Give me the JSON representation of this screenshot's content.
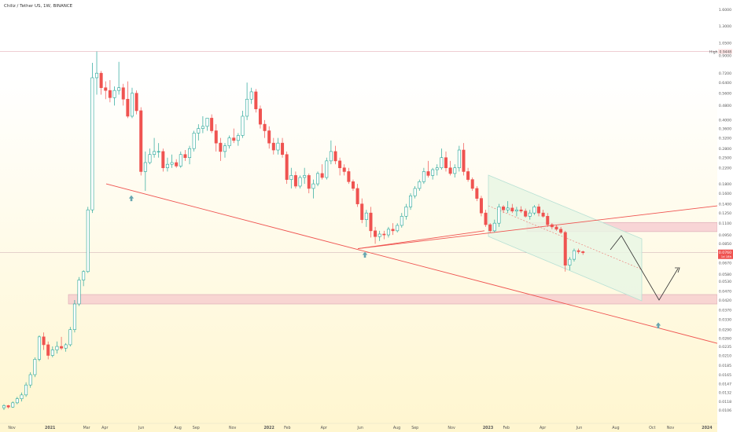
{
  "header": {
    "title": "Chiliz / Tether US, 1W, BINANCE"
  },
  "colors": {
    "up": "#26a69a",
    "up_fill": "#ffffff",
    "down": "#ef5350",
    "trend": "#ef5350",
    "zone": "#f3bcc8",
    "zone_border": "#d9a7b3",
    "channel": "#b7e0d4",
    "channel_fill": "#e9f6e4",
    "arrow": "#67a5b0",
    "bg_top": "#ffffff",
    "bg_bottom": "#fff6cf"
  },
  "chart_data": {
    "type": "candlestick",
    "symbol": "Chiliz / Tether US",
    "interval": "1W",
    "exchange": "BINANCE",
    "y_scale": "log",
    "ylim": [
      0.0106,
      1.6
    ],
    "y_ticks": [
      "1.6000",
      "1.3000",
      "1.0500",
      "0.9000",
      "0.7200",
      "0.6400",
      "0.5600",
      "0.4800",
      "0.4000",
      "0.3600",
      "0.3200",
      "0.2800",
      "0.2500",
      "0.2200",
      "0.1800",
      "0.1600",
      "0.1400",
      "0.1250",
      "0.1100",
      "0.0950",
      "0.0850",
      "0.0760",
      "0.0670",
      "0.0580",
      "0.0530",
      "0.0470",
      "0.0420",
      "0.0370",
      "0.0330",
      "0.0290",
      "0.0260",
      "0.0235",
      "0.0210",
      "0.0185",
      "0.0165",
      "0.0147",
      "0.0132",
      "0.0118",
      "0.0106"
    ],
    "high_label": {
      "text": "High",
      "value": "0.9448"
    },
    "price_label": {
      "value": "0.0760",
      "countdown": "1d 18h"
    },
    "x_ticks": [
      "Nov",
      "2021",
      "Mar",
      "Apr",
      "Jun",
      "Aug",
      "Sep",
      "Nov",
      "2022",
      "Feb",
      "Apr",
      "Jun",
      "Aug",
      "Sep",
      "Nov",
      "2023",
      "Feb",
      "Apr",
      "Jun",
      "Aug",
      "Oct",
      "Nov",
      "2024"
    ],
    "x_months": [
      0,
      2.1,
      4.1,
      5.1,
      7.1,
      9.1,
      10.1,
      12.1,
      14.1,
      15.1,
      17.1,
      19.1,
      21.1,
      22.1,
      24.1,
      26.1,
      27.1,
      29.1,
      31.1,
      33.1,
      35.1,
      36.1,
      38.1
    ],
    "candles": [
      [
        0.0109,
        0.0114,
        0.0106,
        0.0112
      ],
      [
        0.0112,
        0.0113,
        0.0108,
        0.011
      ],
      [
        0.011,
        0.0118,
        0.0109,
        0.0116
      ],
      [
        0.0116,
        0.0125,
        0.0114,
        0.0122
      ],
      [
        0.0122,
        0.0132,
        0.0118,
        0.0128
      ],
      [
        0.0128,
        0.015,
        0.0125,
        0.0145
      ],
      [
        0.0145,
        0.017,
        0.014,
        0.0165
      ],
      [
        0.0165,
        0.0205,
        0.016,
        0.02
      ],
      [
        0.02,
        0.027,
        0.0195,
        0.0265
      ],
      [
        0.0265,
        0.028,
        0.0225,
        0.024
      ],
      [
        0.024,
        0.025,
        0.02,
        0.021
      ],
      [
        0.021,
        0.0235,
        0.0205,
        0.0225
      ],
      [
        0.0225,
        0.025,
        0.0215,
        0.0235
      ],
      [
        0.0235,
        0.0265,
        0.0225,
        0.023
      ],
      [
        0.023,
        0.0245,
        0.022,
        0.024
      ],
      [
        0.024,
        0.03,
        0.0235,
        0.029
      ],
      [
        0.029,
        0.042,
        0.028,
        0.04
      ],
      [
        0.04,
        0.056,
        0.039,
        0.054
      ],
      [
        0.054,
        0.061,
        0.05,
        0.06
      ],
      [
        0.06,
        0.135,
        0.059,
        0.13
      ],
      [
        0.13,
        0.82,
        0.125,
        0.68
      ],
      [
        0.68,
        0.9448,
        0.55,
        0.72
      ],
      [
        0.72,
        0.74,
        0.55,
        0.6
      ],
      [
        0.6,
        0.65,
        0.52,
        0.58
      ],
      [
        0.58,
        0.66,
        0.5,
        0.53
      ],
      [
        0.53,
        0.61,
        0.48,
        0.58
      ],
      [
        0.58,
        0.83,
        0.55,
        0.6
      ],
      [
        0.6,
        0.63,
        0.48,
        0.52
      ],
      [
        0.52,
        0.65,
        0.41,
        0.42
      ],
      [
        0.42,
        0.6,
        0.41,
        0.56
      ],
      [
        0.56,
        0.58,
        0.43,
        0.45
      ],
      [
        0.45,
        0.47,
        0.2,
        0.21
      ],
      [
        0.21,
        0.27,
        0.165,
        0.235
      ],
      [
        0.235,
        0.28,
        0.23,
        0.26
      ],
      [
        0.26,
        0.32,
        0.25,
        0.27
      ],
      [
        0.27,
        0.3,
        0.25,
        0.27
      ],
      [
        0.27,
        0.28,
        0.21,
        0.22
      ],
      [
        0.22,
        0.25,
        0.21,
        0.23
      ],
      [
        0.23,
        0.26,
        0.22,
        0.235
      ],
      [
        0.235,
        0.245,
        0.22,
        0.225
      ],
      [
        0.225,
        0.27,
        0.22,
        0.26
      ],
      [
        0.26,
        0.275,
        0.24,
        0.25
      ],
      [
        0.25,
        0.29,
        0.23,
        0.28
      ],
      [
        0.28,
        0.35,
        0.27,
        0.34
      ],
      [
        0.34,
        0.38,
        0.31,
        0.36
      ],
      [
        0.36,
        0.42,
        0.34,
        0.37
      ],
      [
        0.37,
        0.41,
        0.35,
        0.41
      ],
      [
        0.41,
        0.43,
        0.34,
        0.35
      ],
      [
        0.35,
        0.38,
        0.27,
        0.3
      ],
      [
        0.3,
        0.32,
        0.24,
        0.27
      ],
      [
        0.27,
        0.3,
        0.25,
        0.29
      ],
      [
        0.29,
        0.33,
        0.28,
        0.32
      ],
      [
        0.32,
        0.36,
        0.3,
        0.31
      ],
      [
        0.31,
        0.34,
        0.29,
        0.33
      ],
      [
        0.33,
        0.45,
        0.32,
        0.42
      ],
      [
        0.42,
        0.64,
        0.4,
        0.52
      ],
      [
        0.52,
        0.6,
        0.49,
        0.57
      ],
      [
        0.57,
        0.59,
        0.44,
        0.46
      ],
      [
        0.46,
        0.48,
        0.36,
        0.38
      ],
      [
        0.38,
        0.4,
        0.32,
        0.35
      ],
      [
        0.35,
        0.37,
        0.28,
        0.3
      ],
      [
        0.3,
        0.32,
        0.26,
        0.275
      ],
      [
        0.275,
        0.32,
        0.26,
        0.3
      ],
      [
        0.3,
        0.32,
        0.25,
        0.26
      ],
      [
        0.26,
        0.27,
        0.18,
        0.19
      ],
      [
        0.19,
        0.22,
        0.17,
        0.2
      ],
      [
        0.2,
        0.21,
        0.17,
        0.175
      ],
      [
        0.175,
        0.2,
        0.17,
        0.195
      ],
      [
        0.195,
        0.22,
        0.18,
        0.2
      ],
      [
        0.2,
        0.205,
        0.16,
        0.17
      ],
      [
        0.17,
        0.19,
        0.15,
        0.18
      ],
      [
        0.18,
        0.21,
        0.175,
        0.205
      ],
      [
        0.205,
        0.23,
        0.19,
        0.195
      ],
      [
        0.195,
        0.25,
        0.19,
        0.24
      ],
      [
        0.24,
        0.31,
        0.23,
        0.27
      ],
      [
        0.27,
        0.29,
        0.23,
        0.24
      ],
      [
        0.24,
        0.25,
        0.2,
        0.22
      ],
      [
        0.22,
        0.23,
        0.2,
        0.21
      ],
      [
        0.21,
        0.22,
        0.18,
        0.185
      ],
      [
        0.185,
        0.19,
        0.165,
        0.17
      ],
      [
        0.17,
        0.18,
        0.135,
        0.14
      ],
      [
        0.14,
        0.15,
        0.11,
        0.115
      ],
      [
        0.115,
        0.13,
        0.105,
        0.125
      ],
      [
        0.125,
        0.135,
        0.092,
        0.1
      ],
      [
        0.1,
        0.105,
        0.085,
        0.093
      ],
      [
        0.093,
        0.1,
        0.088,
        0.096
      ],
      [
        0.096,
        0.1,
        0.09,
        0.095
      ],
      [
        0.095,
        0.105,
        0.092,
        0.102
      ],
      [
        0.102,
        0.11,
        0.095,
        0.1
      ],
      [
        0.1,
        0.11,
        0.098,
        0.107
      ],
      [
        0.107,
        0.125,
        0.104,
        0.12
      ],
      [
        0.12,
        0.14,
        0.115,
        0.135
      ],
      [
        0.135,
        0.16,
        0.13,
        0.155
      ],
      [
        0.155,
        0.175,
        0.15,
        0.17
      ],
      [
        0.17,
        0.19,
        0.165,
        0.185
      ],
      [
        0.185,
        0.22,
        0.18,
        0.21
      ],
      [
        0.21,
        0.24,
        0.195,
        0.2
      ],
      [
        0.2,
        0.22,
        0.19,
        0.215
      ],
      [
        0.215,
        0.23,
        0.2,
        0.22
      ],
      [
        0.22,
        0.28,
        0.215,
        0.25
      ],
      [
        0.25,
        0.27,
        0.21,
        0.22
      ],
      [
        0.22,
        0.24,
        0.2,
        0.205
      ],
      [
        0.205,
        0.23,
        0.195,
        0.22
      ],
      [
        0.22,
        0.29,
        0.21,
        0.275
      ],
      [
        0.275,
        0.3,
        0.2,
        0.21
      ],
      [
        0.21,
        0.22,
        0.185,
        0.19
      ],
      [
        0.19,
        0.195,
        0.165,
        0.17
      ],
      [
        0.17,
        0.175,
        0.145,
        0.15
      ],
      [
        0.15,
        0.155,
        0.12,
        0.125
      ],
      [
        0.125,
        0.13,
        0.105,
        0.108
      ],
      [
        0.108,
        0.11,
        0.098,
        0.1
      ],
      [
        0.1,
        0.115,
        0.098,
        0.11
      ],
      [
        0.11,
        0.14,
        0.105,
        0.135
      ],
      [
        0.135,
        0.138,
        0.125,
        0.13
      ],
      [
        0.13,
        0.145,
        0.125,
        0.133
      ],
      [
        0.133,
        0.14,
        0.125,
        0.128
      ],
      [
        0.128,
        0.135,
        0.12,
        0.13
      ],
      [
        0.13,
        0.136,
        0.125,
        0.128
      ],
      [
        0.128,
        0.132,
        0.118,
        0.12
      ],
      [
        0.12,
        0.13,
        0.115,
        0.125
      ],
      [
        0.125,
        0.138,
        0.122,
        0.135
      ],
      [
        0.135,
        0.14,
        0.12,
        0.125
      ],
      [
        0.125,
        0.13,
        0.118,
        0.12
      ],
      [
        0.12,
        0.125,
        0.105,
        0.108
      ],
      [
        0.108,
        0.11,
        0.102,
        0.105
      ],
      [
        0.105,
        0.108,
        0.1,
        0.102
      ],
      [
        0.102,
        0.105,
        0.096,
        0.098
      ],
      [
        0.098,
        0.1,
        0.06,
        0.065
      ],
      [
        0.065,
        0.072,
        0.061,
        0.07
      ],
      [
        0.07,
        0.08,
        0.068,
        0.078
      ],
      [
        0.078,
        0.08,
        0.075,
        0.077
      ],
      [
        0.077,
        0.078,
        0.074,
        0.076
      ]
    ],
    "zones": [
      {
        "y_range": [
          0.04,
          0.045
        ],
        "x_start": 87
      },
      {
        "y_range": [
          0.099,
          0.111
        ],
        "x_start": 670
      }
    ],
    "trendlines": [
      {
        "p1": [
          135,
          0.18
        ],
        "p2": [
          932,
          0.0232
        ]
      },
      {
        "p1": [
          455,
          0.08
        ],
        "p2": [
          932,
          0.14
        ]
      },
      {
        "p1": [
          455,
          0.08
        ],
        "p2": [
          616,
          0.1
        ]
      }
    ],
    "annotation_arrows": [
      {
        "x": 167,
        "y": 0.15
      },
      {
        "x": 464,
        "y": 0.074
      },
      {
        "x": 837,
        "y": 0.0305
      }
    ]
  }
}
